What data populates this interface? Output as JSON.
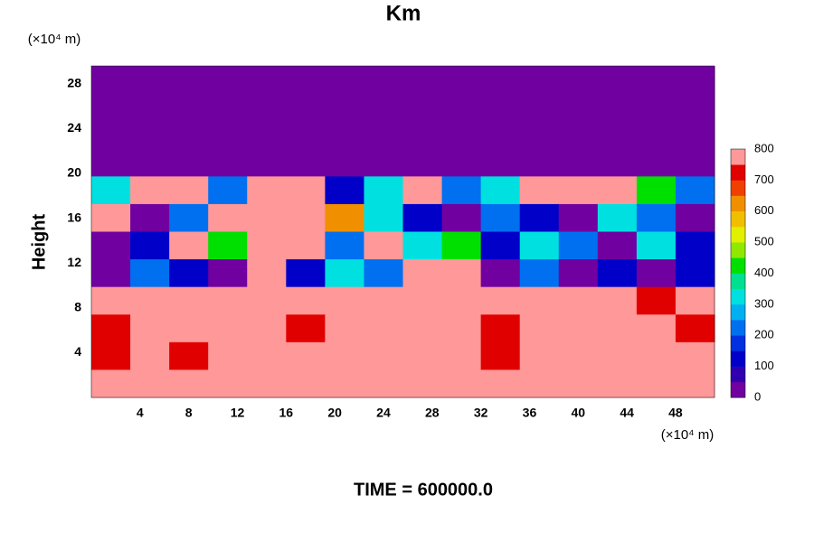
{
  "chart_data": {
    "type": "contour",
    "title": "Km",
    "y_label": "Height",
    "x_unit": "(×10⁴ m)",
    "y_unit": "(×10⁴ m)",
    "footer": "TIME = 600000.0",
    "xlim": [
      0,
      51.2
    ],
    "ylim": [
      0,
      29.6
    ],
    "xticks": [
      4,
      8,
      12,
      16,
      20,
      24,
      28,
      32,
      36,
      40,
      44,
      48
    ],
    "yticks": [
      4,
      8,
      12,
      16,
      20,
      24,
      28
    ],
    "z": [
      [
        0,
        0,
        0,
        0,
        0,
        0,
        0,
        0,
        0,
        0,
        0,
        0,
        0,
        0,
        0,
        0
      ],
      [
        0,
        0,
        0,
        0,
        0,
        0,
        0,
        0,
        0,
        0,
        0,
        0,
        0,
        0,
        0,
        0
      ],
      [
        0,
        0,
        0,
        0,
        0,
        0,
        0,
        0,
        0,
        0,
        0,
        0,
        0,
        0,
        0,
        0
      ],
      [
        0,
        0,
        0,
        0,
        0,
        0,
        0,
        0,
        0,
        0,
        0,
        0,
        0,
        0,
        0,
        0
      ],
      [
        300,
        800,
        800,
        200,
        800,
        800,
        100,
        300,
        800,
        200,
        300,
        800,
        800,
        800,
        400,
        200
      ],
      [
        800,
        0,
        200,
        800,
        800,
        800,
        600,
        300,
        100,
        0,
        200,
        100,
        0,
        300,
        200,
        0
      ],
      [
        0,
        100,
        800,
        400,
        800,
        800,
        200,
        800,
        300,
        400,
        100,
        300,
        200,
        0,
        300,
        100
      ],
      [
        0,
        200,
        100,
        0,
        800,
        100,
        300,
        200,
        800,
        800,
        0,
        200,
        0,
        100,
        0,
        100
      ],
      [
        800,
        800,
        800,
        800,
        800,
        800,
        800,
        800,
        800,
        800,
        800,
        800,
        800,
        800,
        700,
        800
      ],
      [
        700,
        800,
        800,
        800,
        800,
        700,
        800,
        800,
        800,
        800,
        700,
        800,
        800,
        800,
        800,
        700
      ],
      [
        700,
        800,
        700,
        800,
        800,
        800,
        800,
        800,
        800,
        800,
        700,
        800,
        800,
        800,
        800,
        800
      ],
      [
        800,
        800,
        800,
        800,
        800,
        800,
        800,
        800,
        800,
        800,
        800,
        800,
        800,
        800,
        800,
        800
      ]
    ],
    "colorbar": {
      "lim": [
        0,
        800
      ],
      "ticks": [
        0,
        100,
        200,
        300,
        400,
        500,
        600,
        700,
        800
      ],
      "colors": [
        "#7000a0",
        "#3000b0",
        "#0000c8",
        "#0030e0",
        "#0070f0",
        "#00b0f0",
        "#00e0e0",
        "#00e090",
        "#00e000",
        "#90e800",
        "#e0f000",
        "#f0c000",
        "#f09000",
        "#f04000",
        "#e00000",
        "#ff9898"
      ]
    }
  }
}
